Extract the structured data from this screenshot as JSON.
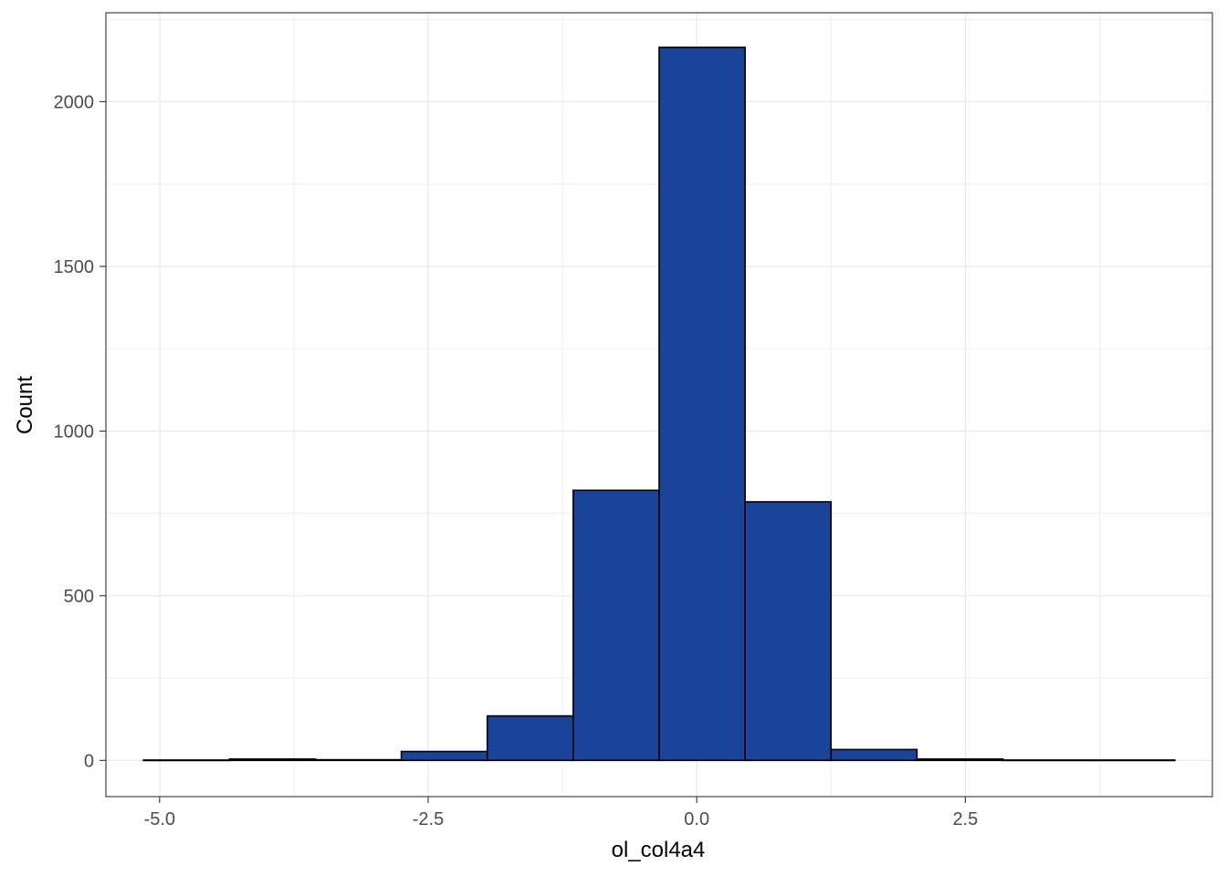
{
  "chart_data": {
    "type": "bar",
    "subtype": "histogram",
    "title": "",
    "xlabel": "ol_col4a4",
    "ylabel": "Count",
    "bins": [
      {
        "x0": -5.15,
        "x1": -4.35,
        "count": 1
      },
      {
        "x0": -4.35,
        "x1": -3.55,
        "count": 4
      },
      {
        "x0": -3.55,
        "x1": -2.75,
        "count": 2
      },
      {
        "x0": -2.75,
        "x1": -1.95,
        "count": 27
      },
      {
        "x0": -1.95,
        "x1": -1.15,
        "count": 135
      },
      {
        "x0": -1.15,
        "x1": -0.35,
        "count": 820
      },
      {
        "x0": -0.35,
        "x1": 0.45,
        "count": 2165
      },
      {
        "x0": 0.45,
        "x1": 1.25,
        "count": 785
      },
      {
        "x0": 1.25,
        "x1": 2.05,
        "count": 33
      },
      {
        "x0": 2.05,
        "x1": 2.85,
        "count": 4
      },
      {
        "x0": 2.85,
        "x1": 3.65,
        "count": 1
      },
      {
        "x0": 3.65,
        "x1": 4.45,
        "count": 1
      }
    ],
    "xlim": [
      -5.5,
      4.8
    ],
    "ylim": [
      -110,
      2270
    ],
    "x_ticks": [
      {
        "value": -5.0,
        "label": "-5.0"
      },
      {
        "value": -2.5,
        "label": "-2.5"
      },
      {
        "value": 0.0,
        "label": "0.0"
      },
      {
        "value": 2.5,
        "label": "2.5"
      }
    ],
    "y_ticks": [
      {
        "value": 0,
        "label": "0"
      },
      {
        "value": 500,
        "label": "500"
      },
      {
        "value": 1000,
        "label": "1000"
      },
      {
        "value": 1500,
        "label": "1500"
      },
      {
        "value": 2000,
        "label": "2000"
      }
    ],
    "grid": true,
    "colors": {
      "bar_fill": "#1a4499",
      "bar_stroke": "#000000",
      "grid": "#ebebeb",
      "panel_border": "#333333",
      "tick_text": "#4d4d4d"
    }
  }
}
